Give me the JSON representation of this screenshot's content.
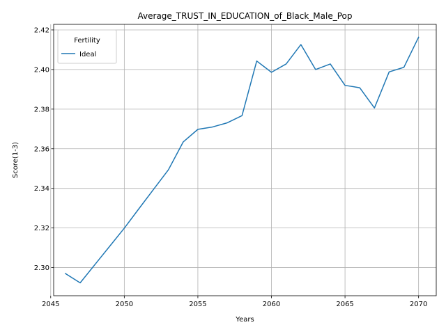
{
  "chart_data": {
    "type": "line",
    "title": "Average_TRUST_IN_EDUCATION_of_Black_Male_Pop",
    "xlabel": "Years",
    "ylabel": "Score(1-3)",
    "xlim": [
      2045.2,
      2071.2
    ],
    "ylim": [
      2.2858,
      2.4228
    ],
    "xticks": [
      2045,
      2050,
      2055,
      2060,
      2065,
      2070
    ],
    "yticks": [
      2.3,
      2.32,
      2.34,
      2.36,
      2.38,
      2.4,
      2.42
    ],
    "grid": true,
    "legend": {
      "title": "Fertility",
      "placement": "top-left"
    },
    "series": [
      {
        "name": "Ideal",
        "color": "#1f77b4",
        "x": [
          2046,
          2047,
          2048,
          2049,
          2050,
          2051,
          2052,
          2053,
          2054,
          2055,
          2056,
          2057,
          2058,
          2059,
          2060,
          2061,
          2062,
          2063,
          2064,
          2065,
          2066,
          2067,
          2068,
          2069,
          2070
        ],
        "y": [
          2.297,
          2.2923,
          2.3015,
          2.3107,
          2.3199,
          2.3298,
          2.3396,
          2.3494,
          2.3634,
          2.3698,
          2.371,
          2.3731,
          2.3767,
          2.4043,
          2.3986,
          2.4028,
          2.4126,
          2.4,
          2.4028,
          2.392,
          2.3908,
          2.3806,
          2.3988,
          2.4011,
          2.4163
        ]
      }
    ]
  }
}
